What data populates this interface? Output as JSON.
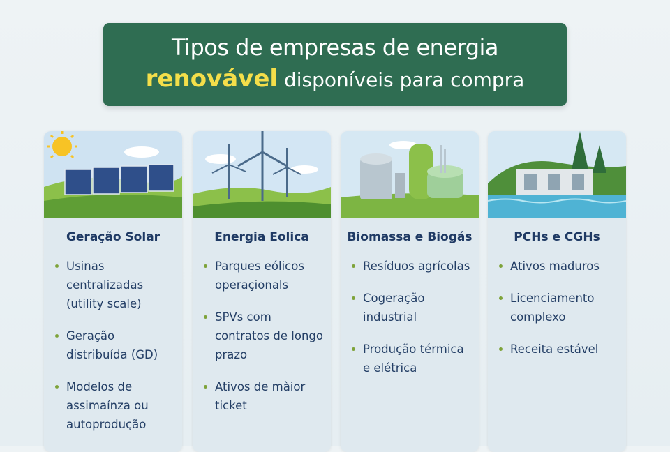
{
  "title": {
    "line1": "Tipos de empresas de energia",
    "highlight": "renovável",
    "line2_rest": "disponíveis para compra"
  },
  "colors": {
    "banner": "#2f6d52",
    "highlight": "#f4de4a",
    "heading": "#1f3a64",
    "bullet": "#7ea33a"
  },
  "cards": [
    {
      "icon": "solar-panels-illustration",
      "title": "Geração Solar",
      "items": [
        "Usinas centralizadas (utility scale)",
        "Geração distribuída (GD)",
        "Modelos de assimaínza ou autoprodução"
      ]
    },
    {
      "icon": "wind-turbines-illustration",
      "title": "Energia Eolica",
      "items": [
        "Parques eólicos operaçionals",
        "SPVs com contratos de longo prazo",
        "Ativos de màior ticket"
      ]
    },
    {
      "icon": "biogas-plant-illustration",
      "title": "Biomassa e Biogás",
      "items": [
        "Resíduos agrícolas",
        "Cogeração industrial",
        "Produção térmica e elétrica"
      ]
    },
    {
      "icon": "hydro-dam-illustration",
      "title": "PCHs e CGHs",
      "items": [
        "Ativos maduros",
        "Licenciamento complexo",
        "Receita estável"
      ]
    }
  ]
}
